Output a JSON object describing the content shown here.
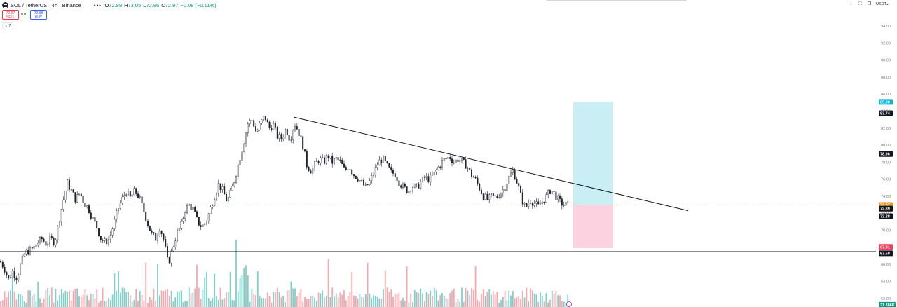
{
  "header": {
    "symbol": "SOL / TetherUS · 4h · Binance",
    "o_label": "O",
    "o_value": "72.89",
    "h_label": "H",
    "h_value": "73.05",
    "l_label": "L",
    "l_value": "72.86",
    "c_label": "C",
    "c_value": "72.97",
    "change": "−0.08 (−0.11%)"
  },
  "trade": {
    "sell_price": "72.97",
    "sell_label": "SELL",
    "spread": "0.01",
    "buy_price": "72.98",
    "buy_label": "BUY"
  },
  "toolbar": {
    "currency": "USDT",
    "collapse_count": "7"
  },
  "colors": {
    "up": "#089981",
    "down": "#f23645",
    "vol_up": "#7fd0c8",
    "vol_down": "#f7a8ae",
    "target_zone": "#c9eef4",
    "stop_zone": "#fcd2e0",
    "last_price_tag": "#f7931a",
    "target_tag": "#00bcd4",
    "stop_tag": "#ef3e5a"
  },
  "chart_data": {
    "type": "candlestick",
    "ylim": [
      61,
      95
    ],
    "y_ticks": [
      "94.00",
      "92.00",
      "90.00",
      "88.00",
      "86.00",
      "84.00",
      "82.00",
      "80.00",
      "78.00",
      "76.00",
      "74.00",
      "72.00",
      "70.00",
      "68.00",
      "66.00",
      "64.00",
      "62.00"
    ],
    "price_series_points": [
      [
        0,
        66.4
      ],
      [
        6,
        65.6
      ],
      [
        12,
        64.2
      ],
      [
        18,
        65.2
      ],
      [
        24,
        64.4
      ],
      [
        30,
        66.2
      ],
      [
        36,
        67.4
      ],
      [
        42,
        67.6
      ],
      [
        48,
        67.9
      ],
      [
        54,
        68.6
      ],
      [
        60,
        69.0
      ],
      [
        66,
        68.4
      ],
      [
        72,
        69.0
      ],
      [
        78,
        68.6
      ],
      [
        84,
        71.0
      ],
      [
        90,
        73.4
      ],
      [
        96,
        75.6
      ],
      [
        102,
        74.6
      ],
      [
        108,
        73.6
      ],
      [
        114,
        74.4
      ],
      [
        120,
        73.2
      ],
      [
        126,
        72.6
      ],
      [
        132,
        71.4
      ],
      [
        138,
        70.4
      ],
      [
        144,
        69.0
      ],
      [
        150,
        68.6
      ],
      [
        156,
        69.0
      ],
      [
        162,
        70.6
      ],
      [
        168,
        72.4
      ],
      [
        174,
        73.6
      ],
      [
        180,
        74.6
      ],
      [
        186,
        73.8
      ],
      [
        192,
        74.6
      ],
      [
        198,
        74.0
      ],
      [
        204,
        72.6
      ],
      [
        210,
        71.0
      ],
      [
        216,
        69.6
      ],
      [
        222,
        69.0
      ],
      [
        228,
        70.4
      ],
      [
        234,
        68.8
      ],
      [
        240,
        66.0
      ],
      [
        246,
        67.8
      ],
      [
        252,
        69.6
      ],
      [
        258,
        70.4
      ],
      [
        264,
        72.4
      ],
      [
        270,
        73.0
      ],
      [
        276,
        72.4
      ],
      [
        282,
        71.0
      ],
      [
        288,
        70.4
      ],
      [
        294,
        71.0
      ],
      [
        300,
        72.4
      ],
      [
        306,
        74.0
      ],
      [
        312,
        75.4
      ],
      [
        318,
        74.6
      ],
      [
        324,
        73.4
      ],
      [
        330,
        74.6
      ],
      [
        336,
        76.4
      ],
      [
        342,
        78.4
      ],
      [
        348,
        80.4
      ],
      [
        354,
        82.6
      ],
      [
        360,
        83.0
      ],
      [
        366,
        81.4
      ],
      [
        372,
        82.6
      ],
      [
        378,
        83.4
      ],
      [
        384,
        82.0
      ],
      [
        390,
        82.4
      ],
      [
        396,
        81.0
      ],
      [
        402,
        80.8
      ],
      [
        408,
        82.0
      ],
      [
        414,
        80.6
      ],
      [
        420,
        82.6
      ],
      [
        426,
        81.6
      ],
      [
        432,
        80.0
      ],
      [
        438,
        77.6
      ],
      [
        444,
        77.0
      ],
      [
        450,
        77.8
      ],
      [
        456,
        78.4
      ],
      [
        462,
        78.0
      ],
      [
        468,
        78.8
      ],
      [
        474,
        78.0
      ],
      [
        480,
        78.4
      ],
      [
        486,
        78.0
      ],
      [
        492,
        77.0
      ],
      [
        498,
        77.6
      ],
      [
        504,
        76.6
      ],
      [
        510,
        76.2
      ],
      [
        516,
        75.6
      ],
      [
        522,
        75.0
      ],
      [
        528,
        75.8
      ],
      [
        534,
        76.8
      ],
      [
        540,
        78.0
      ],
      [
        546,
        78.4
      ],
      [
        552,
        77.6
      ],
      [
        558,
        76.8
      ],
      [
        564,
        76.6
      ],
      [
        570,
        75.6
      ],
      [
        576,
        75.0
      ],
      [
        582,
        74.6
      ],
      [
        588,
        75.2
      ],
      [
        594,
        75.0
      ],
      [
        600,
        75.6
      ],
      [
        606,
        76.2
      ],
      [
        612,
        76.0
      ],
      [
        618,
        76.4
      ],
      [
        624,
        77.2
      ],
      [
        630,
        78.0
      ],
      [
        636,
        78.4
      ],
      [
        642,
        78.6
      ],
      [
        648,
        78.0
      ],
      [
        654,
        78.4
      ],
      [
        660,
        78.0
      ],
      [
        666,
        77.6
      ],
      [
        672,
        76.6
      ],
      [
        678,
        76.0
      ],
      [
        684,
        75.0
      ],
      [
        690,
        74.0
      ],
      [
        696,
        73.6
      ],
      [
        702,
        74.0
      ],
      [
        708,
        73.8
      ],
      [
        714,
        74.4
      ],
      [
        720,
        75.0
      ],
      [
        726,
        76.2
      ],
      [
        732,
        77.0
      ],
      [
        738,
        75.6
      ],
      [
        744,
        73.8
      ],
      [
        750,
        72.6
      ],
      [
        756,
        73.6
      ],
      [
        762,
        73.2
      ],
      [
        768,
        72.8
      ],
      [
        774,
        73.4
      ],
      [
        780,
        74.0
      ],
      [
        786,
        74.8
      ],
      [
        792,
        74.2
      ],
      [
        798,
        73.4
      ],
      [
        804,
        73.0
      ],
      [
        810,
        72.97
      ]
    ],
    "trendline": {
      "from": [
        419,
        83.3
      ],
      "to": [
        982,
        72.3
      ]
    },
    "support_level": 67.5,
    "position": {
      "entry": 72.97,
      "target": 85.08,
      "stop": 67.91,
      "x_start": 818,
      "x_end": 875
    },
    "price_labels": [
      {
        "text": "85.08",
        "price": 85.08,
        "kind": "target"
      },
      {
        "text": "83.74",
        "price": 83.74,
        "kind": "dark"
      },
      {
        "text": "78.96",
        "price": 78.96,
        "kind": "dark"
      },
      {
        "text": "72.97",
        "price": 72.97,
        "kind": "last",
        "countdown": "01:12:15"
      },
      {
        "text": "72.89",
        "price": 72.55,
        "kind": "dark"
      },
      {
        "text": "72.28",
        "price": 71.65,
        "kind": "dark"
      },
      {
        "text": "67.91",
        "price": 68.05,
        "kind": "stop"
      },
      {
        "text": "67.50",
        "price": 67.3,
        "kind": "dark"
      },
      {
        "text": "21.386K",
        "price": 61.25,
        "kind": "vol"
      }
    ]
  }
}
